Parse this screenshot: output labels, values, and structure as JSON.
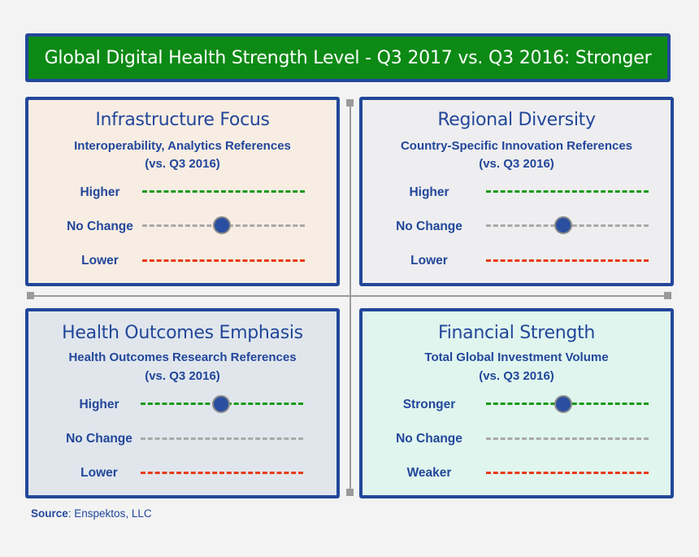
{
  "banner": {
    "title": "Global Digital Health Strength Level - Q3 2017 vs. Q3 2016: Stronger"
  },
  "panels": [
    {
      "title": "Infrastructure Focus",
      "subtitle": "Interoperability, Analytics References",
      "period": "(vs. Q3 2016)",
      "levels": [
        "Higher",
        "No Change",
        "Lower"
      ],
      "indicator_level": "No Change",
      "background": "#f8ede3"
    },
    {
      "title": "Regional Diversity",
      "subtitle": "Country-Specific Innovation References",
      "period": "(vs. Q3 2016)",
      "levels": [
        "Higher",
        "No Change",
        "Lower"
      ],
      "indicator_level": "No Change",
      "background": "#eeeef0"
    },
    {
      "title": "Health Outcomes Emphasis",
      "subtitle": "Health Outcomes Research References",
      "period": "(vs. Q3 2016)",
      "levels": [
        "Higher",
        "No Change",
        "Lower"
      ],
      "indicator_level": "Higher",
      "background": "#e0e6ec"
    },
    {
      "title": "Financial Strength",
      "subtitle": "Total Global Investment Volume",
      "period": "(vs. Q3 2016)",
      "levels": [
        "Stronger",
        "No Change",
        "Weaker"
      ],
      "indicator_level": "Stronger",
      "background": "#e0f5ee"
    }
  ],
  "source": {
    "label": "Source",
    "text": ": Enspektos, LLC"
  },
  "colors": {
    "border": "#22479a",
    "banner": "#0d8a15",
    "higher": "#1a9a1a",
    "no_change": "#a9a9a9",
    "lower": "#e83a14",
    "indicator": "#2a4fa0"
  }
}
